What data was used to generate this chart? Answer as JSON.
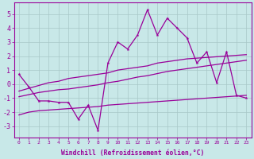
{
  "x": [
    0,
    1,
    2,
    3,
    4,
    5,
    6,
    7,
    8,
    9,
    10,
    11,
    12,
    13,
    14,
    15,
    16,
    17,
    18,
    19,
    20,
    21,
    22,
    23
  ],
  "y_main": [
    0.7,
    -0.2,
    -1.2,
    -1.2,
    -1.3,
    -1.3,
    -2.5,
    -1.5,
    -3.3,
    1.5,
    3.0,
    2.5,
    3.5,
    5.3,
    3.5,
    4.7,
    4.0,
    3.3,
    1.5,
    2.3,
    0.1,
    2.3,
    -0.8,
    -1.0
  ],
  "y_line_top": [
    -0.5,
    -0.3,
    -0.1,
    0.1,
    0.2,
    0.4,
    0.5,
    0.6,
    0.7,
    0.8,
    1.0,
    1.1,
    1.2,
    1.3,
    1.5,
    1.6,
    1.7,
    1.8,
    1.85,
    1.9,
    1.95,
    2.0,
    2.05,
    2.1
  ],
  "y_line_mid": [
    -0.9,
    -0.75,
    -0.6,
    -0.5,
    -0.4,
    -0.35,
    -0.25,
    -0.15,
    -0.05,
    0.1,
    0.2,
    0.35,
    0.5,
    0.6,
    0.75,
    0.9,
    1.0,
    1.1,
    1.2,
    1.3,
    1.4,
    1.5,
    1.6,
    1.7
  ],
  "y_line_bot": [
    -2.2,
    -2.0,
    -1.9,
    -1.85,
    -1.8,
    -1.75,
    -1.7,
    -1.65,
    -1.6,
    -1.5,
    -1.45,
    -1.4,
    -1.35,
    -1.3,
    -1.25,
    -1.2,
    -1.15,
    -1.1,
    -1.05,
    -1.0,
    -0.95,
    -0.9,
    -0.85,
    -0.8
  ],
  "color": "#990099",
  "bg_color": "#c8e8e8",
  "ylim": [
    -3.8,
    5.8
  ],
  "xlim": [
    -0.5,
    23.5
  ],
  "yticks": [
    -3,
    -2,
    -1,
    0,
    1,
    2,
    3,
    4,
    5
  ],
  "xlabel": "Windchill (Refroidissement éolien,°C)",
  "grid_color": "#a8c8c8"
}
